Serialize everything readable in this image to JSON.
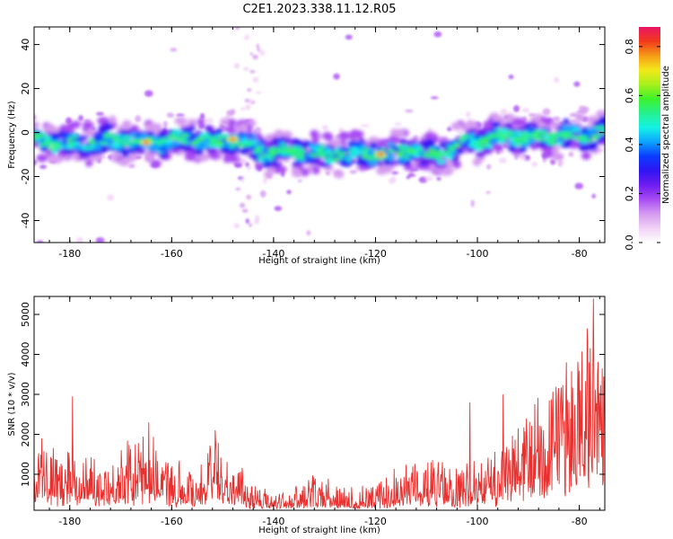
{
  "title": "C2E1.2023.338.11.12.R05",
  "colors": {
    "snr_line": "#e8302e",
    "axes": "#000000",
    "colormap": [
      "#ffffff",
      "#f1d2f6",
      "#d59bf0",
      "#a84cf3",
      "#6f1cf0",
      "#2f14f2",
      "#0b3cff",
      "#0ea3ff",
      "#14f2e6",
      "#26f08f",
      "#3cf22a",
      "#a8f01c",
      "#f3e81a",
      "#f59b18",
      "#f23a1a",
      "#e81466"
    ]
  },
  "chart_data": [
    {
      "type": "heatmap",
      "name": "spectrogram",
      "xlabel": "Height of straight line (km)",
      "ylabel": "Frequency (Hz)",
      "xlim": [
        -187,
        -75
      ],
      "ylim": [
        -50,
        48
      ],
      "x_ticks": [
        "-180",
        "-160",
        "-140",
        "-120",
        "-100",
        "-80"
      ],
      "y_ticks": [
        "40",
        "20",
        "0",
        "-20",
        "-40"
      ],
      "colorbar": {
        "label": "Normalized spectral amplitude",
        "range": [
          0,
          0.88
        ],
        "ticks": [
          "0.0",
          "0.2",
          "0.4",
          "0.6",
          "0.8"
        ]
      },
      "ridge": {
        "x": [
          -187,
          -180,
          -175,
          -170,
          -165,
          -160,
          -156,
          -152,
          -148,
          -144,
          -142,
          -138,
          -134,
          -130,
          -126,
          -122,
          -118,
          -114,
          -110,
          -106,
          -102,
          -98,
          -94,
          -90,
          -86,
          -82,
          -78,
          -76
        ],
        "freq": [
          -4,
          -5,
          -4,
          -3,
          -5,
          -4,
          -2,
          -4,
          -3,
          -6,
          -9,
          -9,
          -9,
          -10,
          -9,
          -9,
          -10,
          -8,
          -10,
          -9,
          -4,
          -3,
          -1,
          -3,
          -2,
          -1,
          -1,
          0
        ]
      },
      "peaks": [
        {
          "x": -165,
          "freq": -4.5
        },
        {
          "x": -148,
          "freq": -3
        },
        {
          "x": -119,
          "freq": -10
        }
      ]
    },
    {
      "type": "line",
      "name": "snr",
      "xlabel": "Height of straight line (km)",
      "ylabel": "SNR (10 * v/v)",
      "xlim": [
        -187,
        -75
      ],
      "ylim": [
        100,
        5450
      ],
      "x_ticks": [
        "-180",
        "-160",
        "-140",
        "-120",
        "-100",
        "-80"
      ],
      "y_ticks": [
        "1000",
        "2000",
        "3000",
        "4000",
        "5000"
      ],
      "envelope": {
        "x": [
          -187,
          -182,
          -180,
          -178,
          -174,
          -170,
          -165,
          -160,
          -155,
          -152,
          -148,
          -144,
          -140,
          -136,
          -132,
          -128,
          -124,
          -120,
          -116,
          -112,
          -108,
          -104,
          -100,
          -96,
          -92,
          -88,
          -84,
          -80,
          -78,
          -77,
          -76,
          -75
        ],
        "y": [
          1500,
          1100,
          1300,
          1200,
          1000,
          1200,
          1500,
          1000,
          900,
          1400,
          1000,
          600,
          350,
          450,
          700,
          600,
          450,
          550,
          800,
          1000,
          1000,
          850,
          1000,
          1200,
          1700,
          2100,
          2400,
          3000,
          3500,
          4500,
          3000,
          3200
        ]
      },
      "spikes": [
        {
          "x": -185.5,
          "y": 1900
        },
        {
          "x": -179.5,
          "y": 2950
        },
        {
          "x": -164.5,
          "y": 2300
        },
        {
          "x": -151.5,
          "y": 2100
        },
        {
          "x": -101.5,
          "y": 2800
        },
        {
          "x": -95,
          "y": 3000
        },
        {
          "x": -82.5,
          "y": 3800
        },
        {
          "x": -78.5,
          "y": 4650
        },
        {
          "x": -77.2,
          "y": 5400
        },
        {
          "x": -75.5,
          "y": 3650
        }
      ]
    }
  ]
}
